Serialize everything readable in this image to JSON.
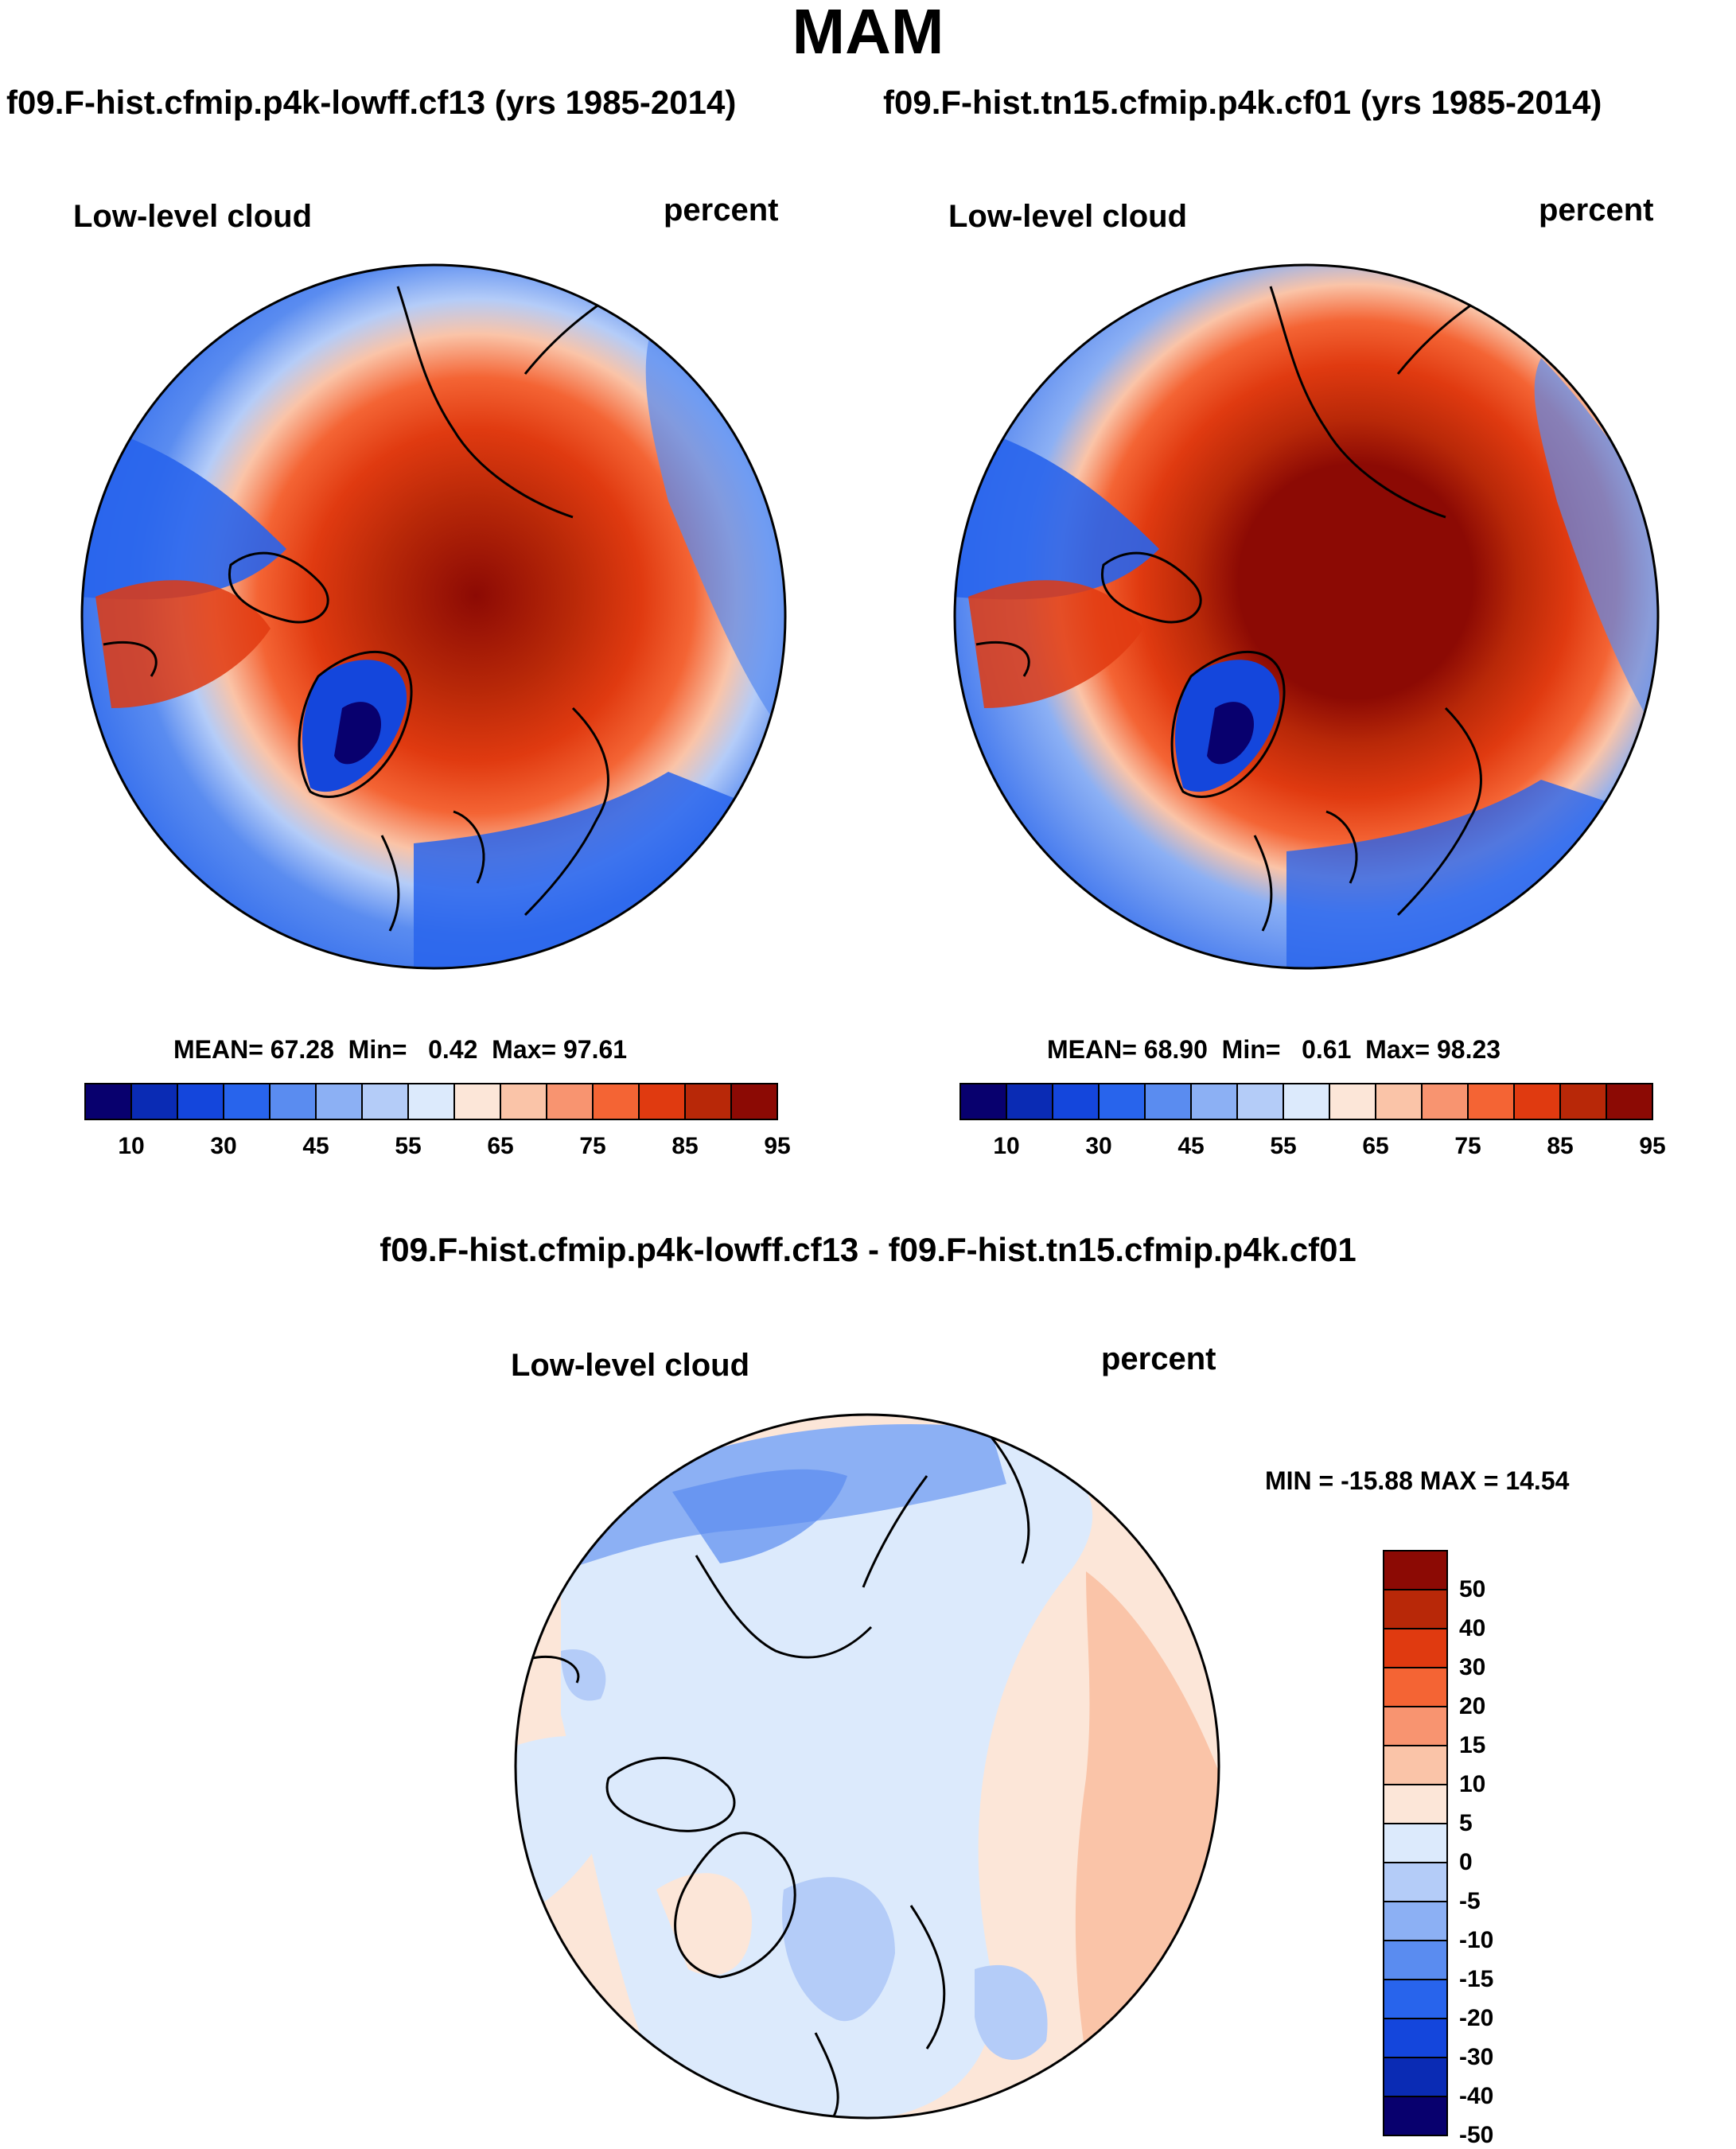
{
  "title": "MAM",
  "panels": [
    {
      "case": "f09.F-hist.cfmip.p4k-lowff.cf13 (yrs 1985-2014)",
      "variable": "Low-level cloud",
      "units": "percent",
      "stats": {
        "mean_label": "MEAN=",
        "mean": "67.28",
        "min_label": "Min=",
        "min": "0.42",
        "max_label": "Max=",
        "max": "97.61"
      }
    },
    {
      "case": "f09.F-hist.tn15.cfmip.p4k.cf01 (yrs 1985-2014)",
      "variable": "Low-level cloud",
      "units": "percent",
      "stats": {
        "mean_label": "MEAN=",
        "mean": "68.90",
        "min_label": "Min=",
        "min": "0.61",
        "max_label": "Max=",
        "max": "98.23"
      }
    }
  ],
  "diff_panel": {
    "title": "f09.F-hist.cfmip.p4k-lowff.cf13 - f09.F-hist.tn15.cfmip.p4k.cf01",
    "variable": "Low-level cloud",
    "units": "percent",
    "minmax": "MIN = -15.88 MAX =  14.54"
  },
  "colorbar_abs": {
    "colors": [
      "#08006e",
      "#0a2bb4",
      "#1446dc",
      "#2864ec",
      "#5a8cf0",
      "#8cb0f4",
      "#b4ccf8",
      "#dceafc",
      "#fce6d8",
      "#fac4a8",
      "#f89470",
      "#f46434",
      "#e03a10",
      "#b82808",
      "#8c0a04"
    ],
    "tick_labels": [
      "10",
      "30",
      "45",
      "55",
      "65",
      "75",
      "85",
      "95"
    ]
  },
  "colorbar_diff": {
    "colors": [
      "#08006e",
      "#0a2bb4",
      "#1446dc",
      "#2864ec",
      "#5a8cf0",
      "#8cb0f4",
      "#b4ccf8",
      "#dceafc",
      "#fce6d8",
      "#fac4a8",
      "#f89470",
      "#f46434",
      "#e03a10",
      "#b82808",
      "#8c0a04"
    ],
    "tick_labels": [
      "50",
      "40",
      "30",
      "20",
      "15",
      "10",
      "5",
      "0",
      "-5",
      "-10",
      "-15",
      "-20",
      "-30",
      "-40",
      "-50"
    ]
  }
}
